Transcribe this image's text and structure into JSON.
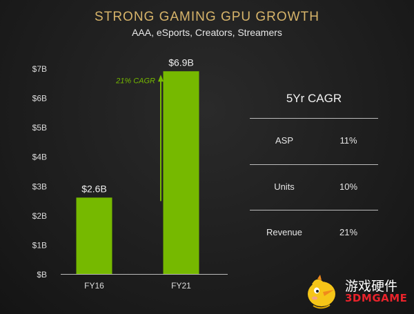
{
  "colors": {
    "bar": "#76b900",
    "axis_text": "#dcdcdc",
    "title": "#d7b46a",
    "arrow": "#76b900"
  },
  "header": {
    "title": "STRONG GAMING GPU GROWTH",
    "subtitle": "AAA, eSports, Creators, Streamers"
  },
  "chart_data": {
    "type": "bar",
    "categories": [
      "FY16",
      "FY21"
    ],
    "values": [
      2.6,
      6.9
    ],
    "data_labels": [
      "$2.6B",
      "$6.9B"
    ],
    "y_ticks": [
      0,
      1,
      2,
      3,
      4,
      5,
      6,
      7
    ],
    "y_tick_labels": [
      "$B",
      "$1B",
      "$2B",
      "$3B",
      "$4B",
      "$5B",
      "$6B",
      "$7B"
    ],
    "ylim": [
      0,
      7
    ],
    "grid": false,
    "annotation": "21% CAGR"
  },
  "cagr_table": {
    "title": "5Yr CAGR",
    "rows": [
      {
        "label": "ASP",
        "value": "11%"
      },
      {
        "label": "Units",
        "value": "10%"
      },
      {
        "label": "Revenue",
        "value": "21%"
      }
    ]
  },
  "watermark": {
    "cn": "游戏硬件",
    "en": "3DMGAME",
    "mascot": "chick-mascot-icon"
  }
}
